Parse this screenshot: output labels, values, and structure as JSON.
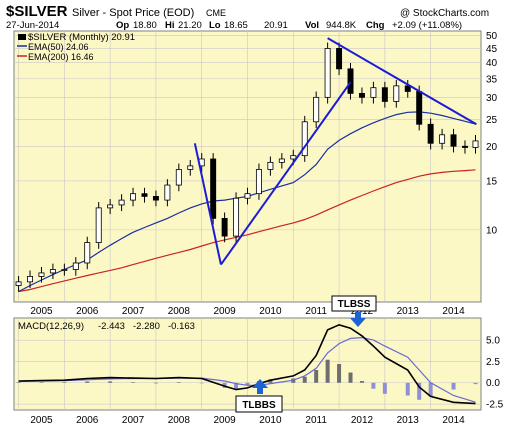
{
  "header": {
    "symbol": "$SILVER",
    "name": "Silver - Spot Price (EOD)",
    "exchange": "CME",
    "date": "27-Jun-2014",
    "op_label": "Op",
    "op": "18.80",
    "hi_label": "Hi",
    "hi": "21.20",
    "lo_label": "Lo",
    "lo": "18.65",
    "close": "20.91",
    "vol_label": "Vol",
    "vol": "944.8K",
    "chg_label": "Chg",
    "chg": "+2.09 (+11.08%)",
    "attribution": "@ StockCharts.com"
  },
  "price_legend": {
    "main": "$SILVER (Monthly) 20.91",
    "ema50": "EMA(50) 24.06",
    "ema200": "EMA(200) 16.46"
  },
  "macd_legend": {
    "label": "MACD(12,26,9)",
    "v1": "-2.443",
    "v2": "-2.280",
    "v3": "-0.163"
  },
  "annotations": {
    "top": "TLBSS",
    "bottom": "TLBBS"
  },
  "colors": {
    "panel_bg": "#fcf8c6",
    "candle": "#000000",
    "ema50": "#1a2ea0",
    "ema200": "#cc2222",
    "trendline": "#1c1cd6",
    "macd": "#000000",
    "signal": "#6a6ad0",
    "hist_pos": "#6e6e6e",
    "hist_neg": "#8f8fd8",
    "arrow": "#1d63d6"
  },
  "chart_data": [
    {
      "type": "candlestick",
      "title": "$SILVER (Monthly)",
      "y_scale": "log",
      "ylim": [
        5.5,
        52
      ],
      "x_tick_labels": [
        "2005",
        "2006",
        "2007",
        "2008",
        "2009",
        "2010",
        "2011",
        "2012",
        "2013",
        "2014"
      ],
      "y_tick_labels": [
        "10",
        "15",
        "20",
        "25",
        "30",
        "35",
        "40",
        "45",
        "50"
      ],
      "grid": true,
      "legend_position": "top-left",
      "x": [
        2004.5,
        2004.75,
        2005.0,
        2005.25,
        2005.5,
        2005.75,
        2006.0,
        2006.25,
        2006.5,
        2006.75,
        2007.0,
        2007.25,
        2007.5,
        2007.75,
        2008.0,
        2008.25,
        2008.5,
        2008.75,
        2009.0,
        2009.25,
        2009.5,
        2009.75,
        2010.0,
        2010.25,
        2010.5,
        2010.75,
        2011.0,
        2011.25,
        2011.5,
        2011.75,
        2012.0,
        2012.25,
        2012.5,
        2012.75,
        2013.0,
        2013.25,
        2013.5,
        2013.75,
        2014.0,
        2014.25,
        2014.48
      ],
      "series": [
        {
          "name": "$SILVER (Monthly)",
          "values": [
            6.5,
            6.8,
            7.0,
            7.2,
            7.2,
            7.6,
            9.0,
            12.0,
            12.3,
            12.8,
            13.5,
            13.2,
            12.8,
            14.5,
            16.5,
            17.0,
            18.0,
            11.0,
            9.5,
            13.0,
            13.5,
            16.5,
            17.5,
            18.0,
            18.5,
            24.5,
            30.0,
            45.0,
            38.0,
            31.0,
            30.0,
            32.5,
            29.0,
            33.0,
            31.5,
            24.0,
            20.5,
            22.0,
            20.0,
            19.8,
            20.91
          ]
        },
        {
          "name": "EMA(50)",
          "values": [
            6.0,
            6.3,
            6.6,
            6.9,
            7.2,
            7.5,
            7.8,
            8.3,
            8.8,
            9.3,
            9.8,
            10.2,
            10.6,
            11.0,
            11.5,
            12.0,
            12.4,
            12.7,
            12.8,
            13.0,
            13.2,
            13.6,
            14.0,
            14.4,
            14.8,
            15.8,
            17.2,
            19.5,
            21.0,
            22.2,
            23.3,
            24.3,
            25.2,
            26.0,
            26.5,
            26.6,
            26.3,
            25.8,
            25.2,
            24.6,
            24.06
          ]
        },
        {
          "name": "EMA(200)",
          "values": [
            6.0,
            6.1,
            6.25,
            6.4,
            6.55,
            6.7,
            6.85,
            7.0,
            7.15,
            7.3,
            7.5,
            7.7,
            7.9,
            8.1,
            8.3,
            8.5,
            8.75,
            9.0,
            9.2,
            9.4,
            9.6,
            9.85,
            10.1,
            10.35,
            10.6,
            10.9,
            11.3,
            11.8,
            12.3,
            12.8,
            13.3,
            13.8,
            14.3,
            14.8,
            15.2,
            15.6,
            15.9,
            16.1,
            16.25,
            16.35,
            16.46
          ]
        }
      ]
    },
    {
      "type": "line",
      "title": "MACD(12,26,9)",
      "ylim": [
        -3.2,
        7.6
      ],
      "y_tick_labels": [
        "5.0",
        "2.5",
        "0.0",
        "-2.5"
      ],
      "x_tick_labels": [
        "2005",
        "2006",
        "2007",
        "2008",
        "2009",
        "2010",
        "2011",
        "2012",
        "2013",
        "2014"
      ],
      "x": [
        2004.5,
        2005.0,
        2005.5,
        2006.0,
        2006.5,
        2007.0,
        2007.5,
        2008.0,
        2008.5,
        2009.0,
        2009.25,
        2009.5,
        2009.75,
        2010.0,
        2010.5,
        2010.75,
        2011.0,
        2011.25,
        2011.5,
        2011.75,
        2012.0,
        2012.25,
        2012.5,
        2013.0,
        2013.25,
        2013.5,
        2014.0,
        2014.48
      ],
      "series": [
        {
          "name": "MACD",
          "values": [
            0.2,
            0.25,
            0.3,
            0.5,
            0.6,
            0.55,
            0.5,
            0.6,
            0.5,
            -0.4,
            -0.8,
            -0.6,
            -0.1,
            0.3,
            0.8,
            1.5,
            3.2,
            6.2,
            6.8,
            6.4,
            5.5,
            4.3,
            3.0,
            1.5,
            -0.5,
            -1.6,
            -2.3,
            -2.443
          ]
        },
        {
          "name": "Signal",
          "values": [
            0.15,
            0.2,
            0.25,
            0.35,
            0.45,
            0.5,
            0.5,
            0.55,
            0.55,
            0.2,
            -0.1,
            -0.3,
            -0.3,
            -0.1,
            0.3,
            0.8,
            1.7,
            3.5,
            4.6,
            5.2,
            5.3,
            5.0,
            4.3,
            3.0,
            1.5,
            0.0,
            -1.5,
            -2.28
          ]
        },
        {
          "name": "Histogram",
          "values": [
            0.05,
            0.05,
            0.05,
            0.15,
            0.15,
            0.05,
            0.0,
            0.05,
            -0.05,
            -0.6,
            -0.7,
            -0.3,
            0.2,
            0.4,
            0.5,
            0.7,
            1.5,
            2.7,
            2.2,
            1.2,
            0.2,
            -0.7,
            -1.3,
            -1.5,
            -2.0,
            -1.6,
            -0.8,
            -0.163
          ]
        }
      ]
    }
  ]
}
